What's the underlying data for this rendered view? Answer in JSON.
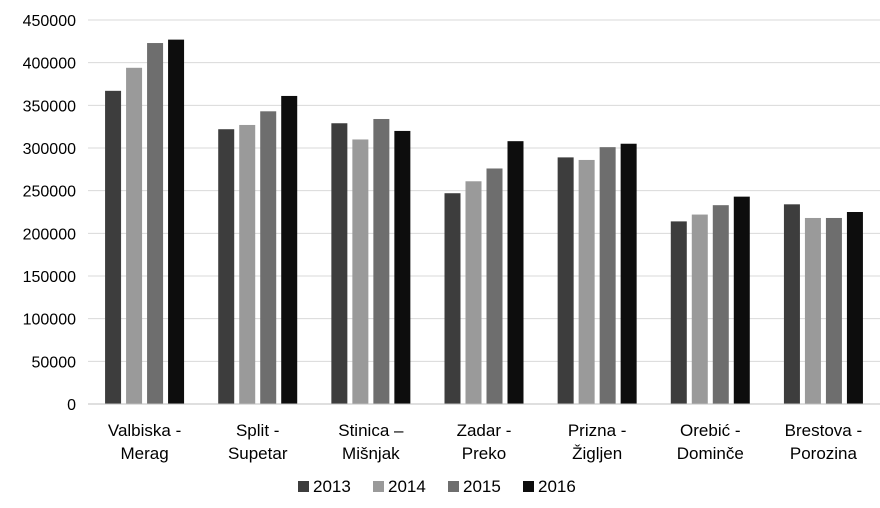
{
  "chart_data": {
    "type": "bar",
    "categories": [
      [
        "Valbiska -",
        "Merag"
      ],
      [
        "Split -",
        "Supetar"
      ],
      [
        "Stinica –",
        "Mišnjak"
      ],
      [
        "Zadar -",
        "Preko"
      ],
      [
        "Prizna -",
        "Žigljen"
      ],
      [
        "Orebić -",
        "Dominče"
      ],
      [
        "Brestova -",
        "Porozina"
      ]
    ],
    "series": [
      {
        "name": "2013",
        "color": "#3d3d3d",
        "values": [
          367000,
          322000,
          329000,
          247000,
          289000,
          214000,
          234000
        ]
      },
      {
        "name": "2014",
        "color": "#9a9a9a",
        "values": [
          394000,
          327000,
          310000,
          261000,
          286000,
          222000,
          218000
        ]
      },
      {
        "name": "2015",
        "color": "#6e6e6e",
        "values": [
          423000,
          343000,
          334000,
          276000,
          301000,
          233000,
          218000
        ]
      },
      {
        "name": "2016",
        "color": "#0d0d0d",
        "values": [
          427000,
          361000,
          320000,
          308000,
          305000,
          243000,
          225000
        ]
      }
    ],
    "ylim": [
      0,
      450000
    ],
    "yticks": [
      "0",
      "50000",
      "100000",
      "150000",
      "200000",
      "250000",
      "300000",
      "350000",
      "400000",
      "450000"
    ],
    "grid": true,
    "legend_position": "bottom",
    "title": "",
    "xlabel": "",
    "ylabel": ""
  }
}
